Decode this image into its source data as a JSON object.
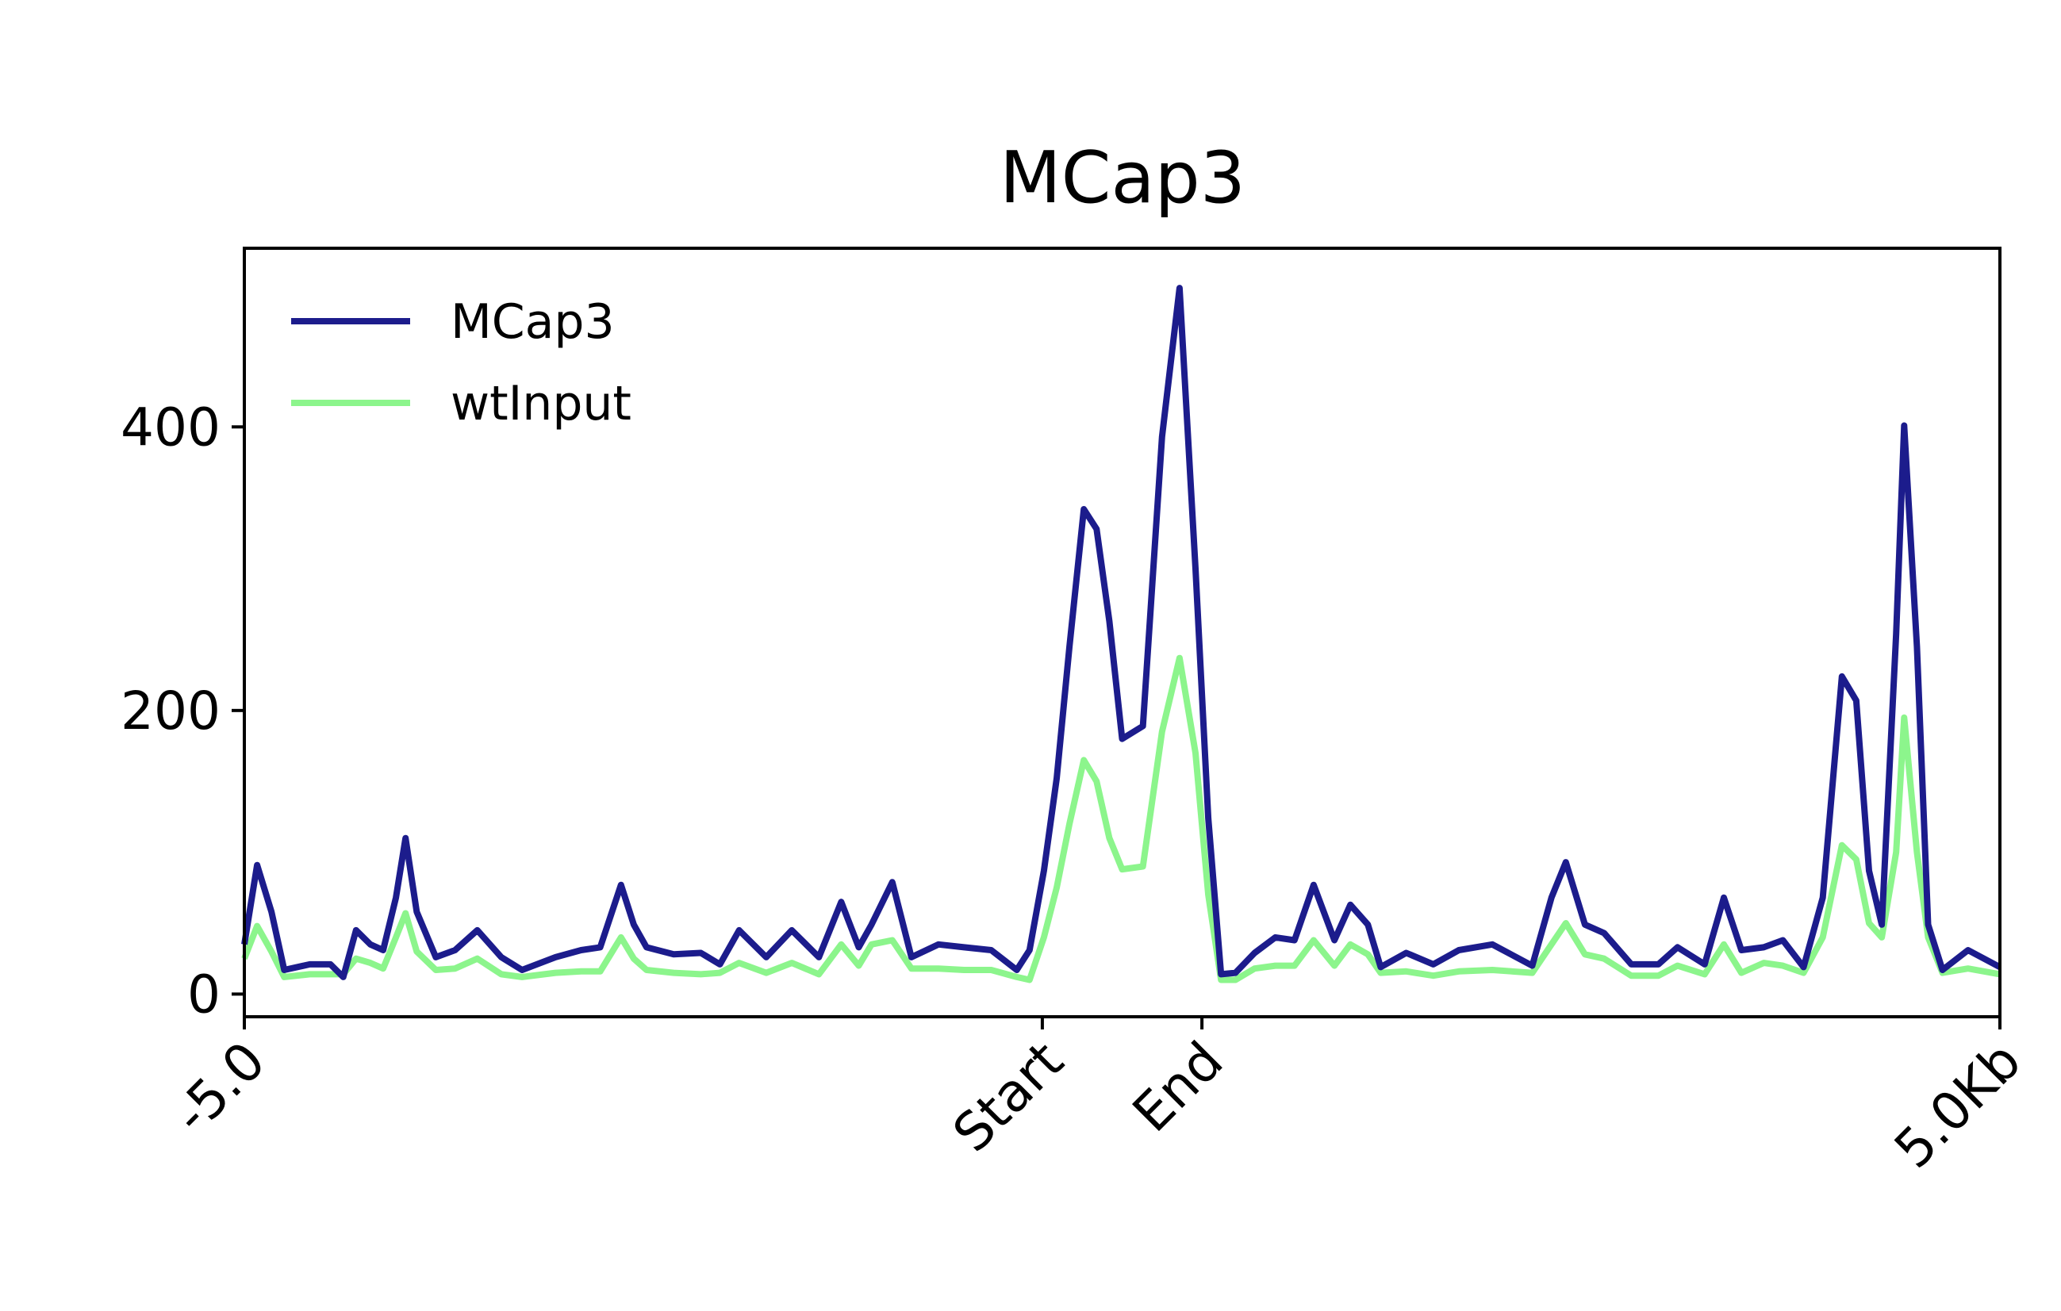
{
  "chart_data": {
    "type": "line",
    "title": "MCap3",
    "x": [
      0,
      8,
      17,
      25,
      41,
      54,
      62,
      70,
      79,
      87,
      95,
      101,
      108,
      120,
      132,
      146,
      161,
      174,
      195,
      211,
      223,
      236,
      244,
      252,
      269,
      286,
      298,
      310,
      327,
      343,
      360,
      374,
      385,
      393,
      406,
      418,
      435,
      451,
      468,
      484,
      492,
      501,
      509,
      517,
      526,
      534,
      542,
      550,
      563,
      575,
      586,
      596,
      604,
      612,
      621,
      633,
      646,
      658,
      670,
      683,
      693,
      704,
      712,
      728,
      745,
      761,
      782,
      807,
      819,
      828,
      840,
      852,
      869,
      886,
      898,
      915,
      927,
      938,
      952,
      964,
      977,
      989,
      1001,
      1010,
      1018,
      1026,
      1035,
      1040,
      1048,
      1055,
      1064,
      1080,
      1100
    ],
    "series": [
      {
        "name": "MCap3",
        "color": "#1c1c8c",
        "values": [
          35,
          91,
          58,
          17,
          21,
          21,
          12,
          45,
          35,
          31,
          68,
          110,
          58,
          26,
          31,
          45,
          26,
          17,
          26,
          31,
          33,
          77,
          49,
          33,
          28,
          29,
          21,
          45,
          26,
          45,
          26,
          65,
          33,
          49,
          79,
          26,
          35,
          33,
          31,
          17,
          31,
          87,
          152,
          245,
          342,
          328,
          263,
          180,
          189,
          393,
          498,
          300,
          124,
          14,
          15,
          29,
          40,
          38,
          77,
          38,
          63,
          49,
          19,
          29,
          21,
          31,
          35,
          20,
          68,
          93,
          49,
          43,
          21,
          21,
          33,
          21,
          68,
          31,
          33,
          38,
          19,
          68,
          224,
          207,
          87,
          49,
          254,
          401,
          245,
          49,
          17,
          31,
          19
        ]
      },
      {
        "name": "wtInput",
        "color": "#8cf58c",
        "values": [
          25,
          48,
          30,
          12,
          14,
          14,
          14,
          25,
          22,
          18,
          40,
          57,
          30,
          17,
          18,
          25,
          14,
          12,
          15,
          16,
          16,
          40,
          25,
          17,
          15,
          14,
          15,
          22,
          15,
          22,
          14,
          35,
          20,
          35,
          38,
          18,
          18,
          17,
          17,
          12,
          10,
          40,
          75,
          120,
          165,
          150,
          110,
          88,
          90,
          185,
          237,
          170,
          70,
          10,
          10,
          18,
          20,
          20,
          38,
          20,
          35,
          28,
          15,
          16,
          13,
          16,
          17,
          15,
          35,
          50,
          28,
          25,
          13,
          13,
          20,
          14,
          35,
          15,
          22,
          20,
          15,
          40,
          105,
          95,
          50,
          40,
          100,
          195,
          100,
          40,
          15,
          18,
          14
        ]
      }
    ],
    "xlim": [
      0,
      1100
    ],
    "ylim": [
      -16,
      526
    ],
    "xticks": [
      {
        "value": 0,
        "label": "-5.0"
      },
      {
        "value": 500,
        "label": "Start"
      },
      {
        "value": 600,
        "label": "End"
      },
      {
        "value": 1100,
        "label": "5.0Kb"
      }
    ],
    "yticks": [
      0,
      200,
      400
    ],
    "grid": false,
    "legend": "upper left"
  }
}
